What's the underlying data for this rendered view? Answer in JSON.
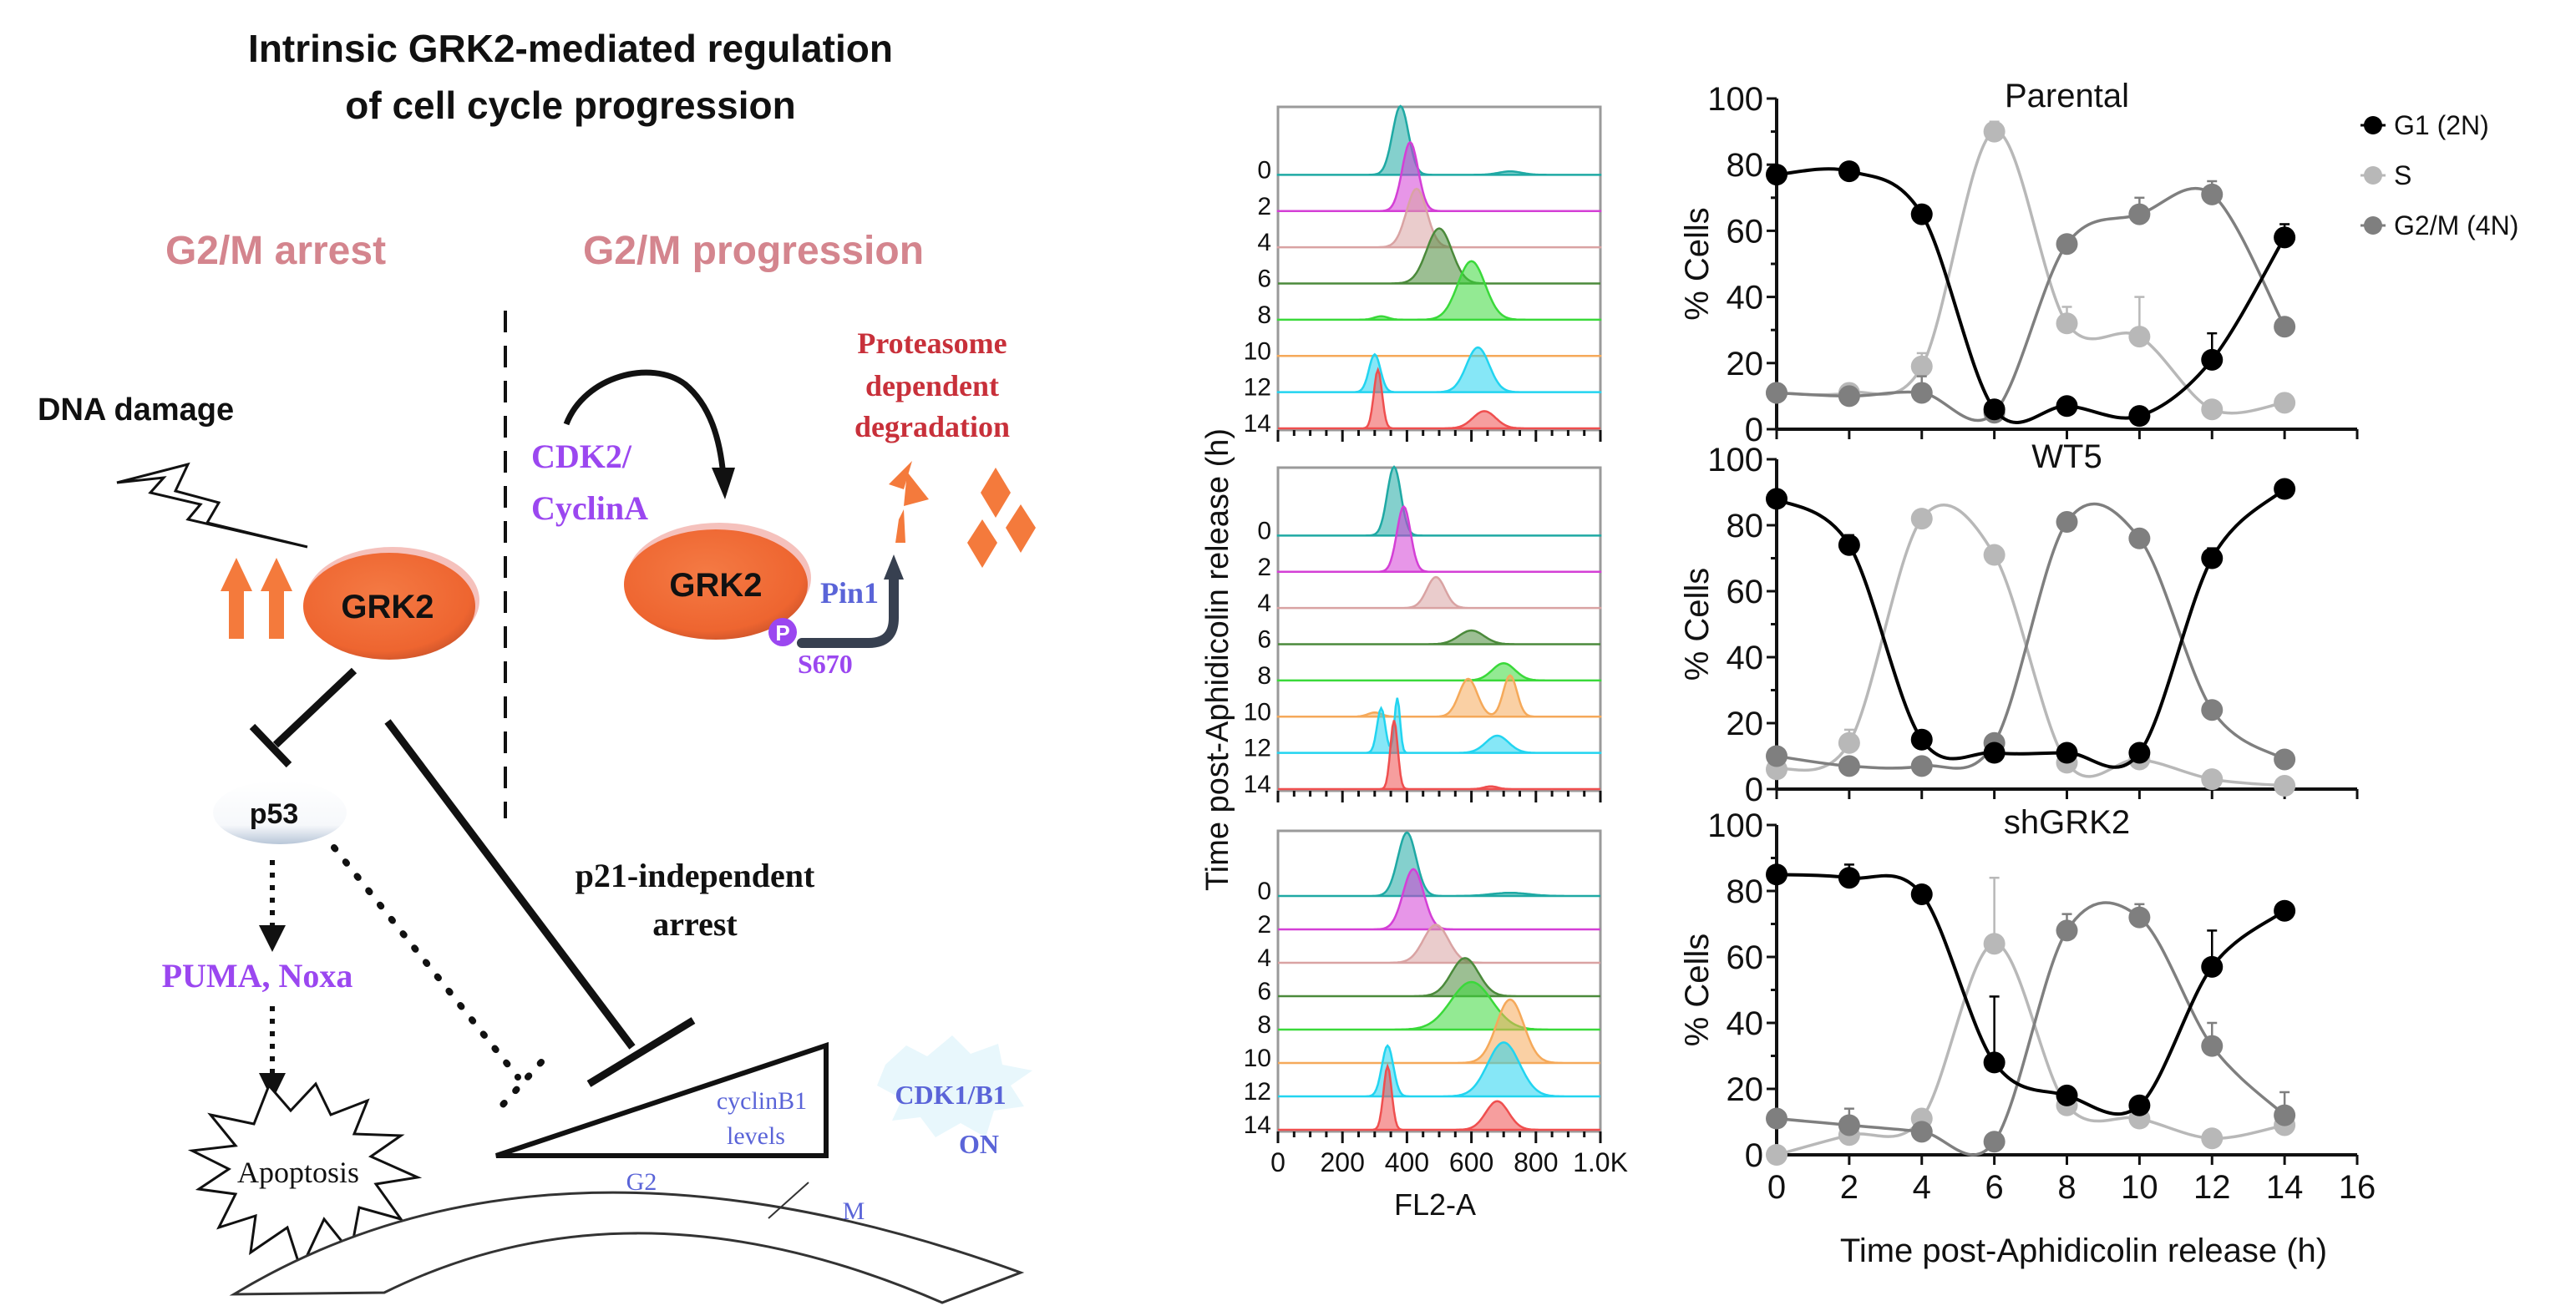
{
  "diagram": {
    "title_line1": "Intrinsic GRK2-mediated regulation",
    "title_line2": "of cell cycle progression",
    "left_heading": "G2/M arrest",
    "right_heading": "G2/M progression",
    "dna_damage": "DNA damage",
    "grk2_left": "GRK2",
    "grk2_right": "GRK2",
    "cdk2_line1": "CDK2/",
    "cdk2_line2": "CyclinA",
    "pin1": "Pin1",
    "phospho": "P",
    "site": "S670",
    "proteasome_line1": "Proteasome",
    "proteasome_line2": "dependent",
    "proteasome_line3": "degradation",
    "p53": "p53",
    "p21_line1": "p21-independent",
    "p21_line2": "arrest",
    "puma": "PUMA, Noxa",
    "apoptosis": "Apoptosis",
    "cyclin_line1": "cyclinB1",
    "cyclin_line2": "levels",
    "cdk1_line1": "CDK1/B1",
    "cdk1_line2": "ON",
    "phase_g2": "G2",
    "phase_m": "M",
    "colors": {
      "heading": "#d4858e",
      "grk2_fill": "#f26a35",
      "purple": "#9b47f0",
      "blue_text": "#5a64d8",
      "red_text": "#c8303a",
      "orange": "#f47a3c"
    }
  },
  "histograms": {
    "ylabel": "Time post-Aphidicolin release (h)",
    "xlabel": "FL2-A",
    "x_ticks": [
      "0",
      "200",
      "400",
      "600",
      "800",
      "1.0K"
    ],
    "time_labels": [
      "0",
      "2",
      "4",
      "6",
      "8",
      "10",
      "12",
      "14"
    ],
    "colors": [
      "#1fa9a4",
      "#d43fd6",
      "#d9a3a3",
      "#4b8a3b",
      "#3ad93a",
      "#f5a95a",
      "#22d4f0",
      "#ef4f4f"
    ]
  },
  "chart_data": [
    {
      "type": "line",
      "title": "Parental",
      "xlabel": "",
      "ylabel": "% Cells",
      "x": [
        0,
        2,
        4,
        6,
        8,
        10,
        12,
        14
      ],
      "xlim": [
        0,
        16
      ],
      "ylim": [
        0,
        100
      ],
      "y_ticks": [
        0,
        20,
        40,
        60,
        80,
        100
      ],
      "x_ticks": [
        0,
        2,
        4,
        6,
        8,
        10,
        12,
        14,
        16
      ],
      "show_x_tick_labels": false,
      "legend": "top-right",
      "series": [
        {
          "name": "G1 (2N)",
          "color": "#000000",
          "values": [
            77,
            78,
            65,
            6,
            7,
            4,
            21,
            58
          ],
          "err": [
            0,
            0,
            0,
            0,
            0,
            0,
            8,
            4
          ]
        },
        {
          "name": "S",
          "color": "#b8b8b8",
          "values": [
            11,
            11,
            19,
            90,
            32,
            28,
            6,
            8
          ],
          "err": [
            0,
            0,
            4,
            3,
            5,
            12,
            0,
            0
          ]
        },
        {
          "name": "G2/M (4N)",
          "color": "#7f7f7f",
          "values": [
            11,
            10,
            11,
            5,
            56,
            65,
            71,
            31
          ],
          "err": [
            0,
            0,
            5,
            0,
            0,
            5,
            4,
            0
          ]
        }
      ]
    },
    {
      "type": "line",
      "title": "WT5",
      "xlabel": "",
      "ylabel": "% Cells",
      "x": [
        0,
        2,
        4,
        6,
        8,
        10,
        12,
        14
      ],
      "xlim": [
        0,
        16
      ],
      "ylim": [
        0,
        100
      ],
      "y_ticks": [
        0,
        20,
        40,
        60,
        80,
        100
      ],
      "x_ticks": [
        0,
        2,
        4,
        6,
        8,
        10,
        12,
        14,
        16
      ],
      "show_x_tick_labels": false,
      "series": [
        {
          "name": "G1 (2N)",
          "color": "#000000",
          "values": [
            88,
            74,
            15,
            11,
            11,
            11,
            70,
            91
          ],
          "err": [
            2,
            3,
            0,
            0,
            0,
            2,
            3,
            0
          ]
        },
        {
          "name": "S",
          "color": "#b8b8b8",
          "values": [
            6,
            14,
            82,
            71,
            8,
            9,
            3,
            1
          ],
          "err": [
            0,
            4,
            0,
            0,
            0,
            0,
            0,
            0
          ]
        },
        {
          "name": "G2/M (4N)",
          "color": "#7f7f7f",
          "values": [
            10,
            7,
            7,
            14,
            81,
            76,
            24,
            9
          ],
          "err": [
            0,
            0,
            1,
            0,
            2,
            0,
            0,
            0
          ]
        }
      ]
    },
    {
      "type": "line",
      "title": "shGRK2",
      "xlabel": "Time post-Aphidicolin release (h)",
      "ylabel": "% Cells",
      "x": [
        0,
        2,
        4,
        6,
        8,
        10,
        12,
        14
      ],
      "xlim": [
        0,
        16
      ],
      "ylim": [
        0,
        100
      ],
      "y_ticks": [
        0,
        20,
        40,
        60,
        80,
        100
      ],
      "x_ticks": [
        0,
        2,
        4,
        6,
        8,
        10,
        12,
        14,
        16
      ],
      "show_x_tick_labels": true,
      "series": [
        {
          "name": "G1 (2N)",
          "color": "#000000",
          "values": [
            85,
            84,
            79,
            28,
            18,
            15,
            57,
            74
          ],
          "err": [
            0,
            4,
            0,
            20,
            0,
            0,
            11,
            0
          ]
        },
        {
          "name": "S",
          "color": "#b8b8b8",
          "values": [
            0,
            6,
            11,
            64,
            15,
            11,
            5,
            9
          ],
          "err": [
            0,
            0,
            0,
            20,
            0,
            0,
            0,
            0
          ]
        },
        {
          "name": "G2/M (4N)",
          "color": "#7f7f7f",
          "values": [
            11,
            9,
            7,
            4,
            68,
            72,
            33,
            12
          ],
          "err": [
            0,
            5,
            0,
            0,
            5,
            4,
            7,
            7
          ]
        }
      ]
    }
  ]
}
